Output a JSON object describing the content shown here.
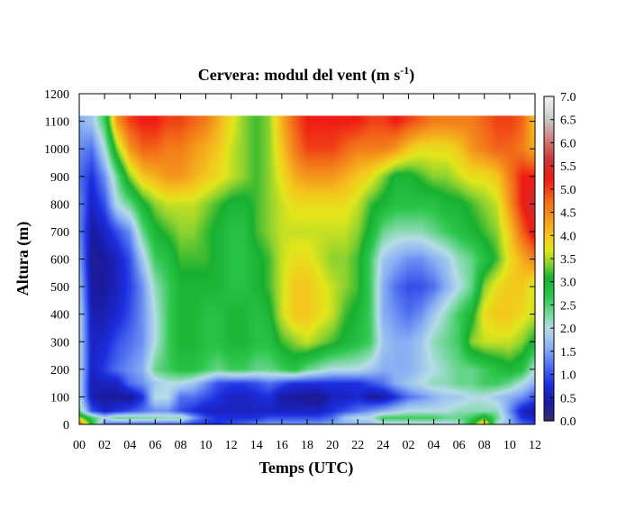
{
  "chart_data": {
    "type": "heatmap",
    "title": {
      "main": "Cervera: modul del vent (m s",
      "superscript": "-1",
      "close": ")"
    },
    "xlabel": "Temps (UTC)",
    "ylabel": "Altura (m)",
    "x_ticks": [
      "00",
      "02",
      "04",
      "06",
      "08",
      "10",
      "12",
      "14",
      "16",
      "18",
      "20",
      "22",
      "24",
      "02",
      "04",
      "06",
      "08",
      "10",
      "12"
    ],
    "xlim_hours": [
      0,
      36
    ],
    "y_ticks": [
      0,
      100,
      200,
      300,
      400,
      500,
      600,
      700,
      800,
      900,
      1000,
      1100,
      1200
    ],
    "ylim": [
      0,
      1200
    ],
    "data_top_m": 1120,
    "colorbar": {
      "label_ticks": [
        "0.0",
        "0.5",
        "1.0",
        "1.5",
        "2.0",
        "2.5",
        "3.0",
        "3.5",
        "4.0",
        "4.5",
        "5.0",
        "5.5",
        "6.0",
        "6.5",
        "7.0"
      ],
      "range": [
        0.0,
        7.0
      ],
      "colormap_stops": [
        {
          "v": 0.0,
          "color": "#30306a"
        },
        {
          "v": 0.4,
          "color": "#1a1aa0"
        },
        {
          "v": 0.8,
          "color": "#1c2ee0"
        },
        {
          "v": 1.2,
          "color": "#4e70f0"
        },
        {
          "v": 1.6,
          "color": "#8ab0f4"
        },
        {
          "v": 2.0,
          "color": "#b6dce8"
        },
        {
          "v": 2.3,
          "color": "#7ad8a0"
        },
        {
          "v": 2.7,
          "color": "#2cc64c"
        },
        {
          "v": 3.1,
          "color": "#18b030"
        },
        {
          "v": 3.4,
          "color": "#8cd230"
        },
        {
          "v": 3.7,
          "color": "#e2e61c"
        },
        {
          "v": 4.0,
          "color": "#f4c81c"
        },
        {
          "v": 4.4,
          "color": "#f4961c"
        },
        {
          "v": 4.8,
          "color": "#f26418"
        },
        {
          "v": 5.2,
          "color": "#ee1c14"
        },
        {
          "v": 5.6,
          "color": "#c83232"
        },
        {
          "v": 6.0,
          "color": "#d26e6e"
        },
        {
          "v": 6.5,
          "color": "#c8c8c8"
        },
        {
          "v": 7.0,
          "color": "#f2f2f2"
        }
      ]
    },
    "grid": false,
    "wind_speed_profiles_m_s": {
      "heights_m": [
        0,
        25,
        50,
        100,
        150,
        200,
        300,
        400,
        500,
        600,
        700,
        800,
        900,
        1000,
        1100
      ],
      "times_h": [
        0,
        1,
        2,
        3,
        4,
        5,
        6,
        7,
        8,
        9,
        10,
        11,
        12,
        13,
        14,
        15,
        16,
        17,
        18,
        19,
        20,
        21,
        22,
        23,
        24,
        25,
        26,
        27,
        28,
        29,
        30,
        31,
        32,
        33,
        34,
        35,
        36
      ],
      "values": [
        [
          5.0,
          3.0,
          1.2,
          1.0,
          1.0,
          1.0,
          1.0,
          1.0,
          1.0,
          0.8,
          0.8,
          0.8,
          1.0,
          1.2,
          1.4,
          1.5,
          1.5,
          1.5,
          1.5,
          1.5,
          1.6,
          1.6,
          1.6,
          1.6,
          1.8,
          1.8,
          1.8,
          1.8,
          1.8,
          1.8,
          2.0,
          3.0,
          4.2,
          2.0,
          1.6,
          1.2,
          1.0
        ],
        [
          3.6,
          2.6,
          2.0,
          2.4,
          2.4,
          2.3,
          2.3,
          2.2,
          2.3,
          1.5,
          1.0,
          0.8,
          0.8,
          0.8,
          0.8,
          1.0,
          1.0,
          1.0,
          1.0,
          1.0,
          1.2,
          1.8,
          2.0,
          2.0,
          2.6,
          2.6,
          2.6,
          2.6,
          2.6,
          2.4,
          2.4,
          2.6,
          3.2,
          2.4,
          1.6,
          0.8,
          0.6
        ],
        [
          2.4,
          1.0,
          0.6,
          0.8,
          1.0,
          1.2,
          1.4,
          1.4,
          1.0,
          0.8,
          0.6,
          0.6,
          0.6,
          0.6,
          0.6,
          0.6,
          0.6,
          0.6,
          0.6,
          0.6,
          0.8,
          1.0,
          1.2,
          1.4,
          1.6,
          1.8,
          2.0,
          2.0,
          2.0,
          2.0,
          2.2,
          2.2,
          2.2,
          2.2,
          1.4,
          0.6,
          0.4
        ],
        [
          2.0,
          0.5,
          0.4,
          0.4,
          0.3,
          0.8,
          2.0,
          2.0,
          1.2,
          1.2,
          1.0,
          0.8,
          0.6,
          0.6,
          0.7,
          0.8,
          0.4,
          0.4,
          0.3,
          0.3,
          0.6,
          0.6,
          0.7,
          0.4,
          0.4,
          0.8,
          1.2,
          1.4,
          1.6,
          1.8,
          1.8,
          2.0,
          2.0,
          1.8,
          1.6,
          1.4,
          1.0
        ],
        [
          2.0,
          0.5,
          0.6,
          0.6,
          1.2,
          1.4,
          1.8,
          2.0,
          2.0,
          1.8,
          1.4,
          1.0,
          0.9,
          0.9,
          1.0,
          1.2,
          1.0,
          0.8,
          0.8,
          0.8,
          0.8,
          0.8,
          0.8,
          1.0,
          1.2,
          1.6,
          1.8,
          2.0,
          2.2,
          2.2,
          2.4,
          2.4,
          2.6,
          2.6,
          2.4,
          2.0,
          1.6
        ],
        [
          2.0,
          0.6,
          0.9,
          1.2,
          1.4,
          1.6,
          2.4,
          2.6,
          2.8,
          2.8,
          2.6,
          2.4,
          2.6,
          2.6,
          2.4,
          2.4,
          2.6,
          2.8,
          2.4,
          2.2,
          2.0,
          2.0,
          2.0,
          1.8,
          1.6,
          1.6,
          1.6,
          1.8,
          2.0,
          2.2,
          2.4,
          2.4,
          2.6,
          2.8,
          3.0,
          2.8,
          2.0
        ],
        [
          2.0,
          0.6,
          0.7,
          1.0,
          1.2,
          1.4,
          2.0,
          2.6,
          3.0,
          3.0,
          2.8,
          2.8,
          3.0,
          3.0,
          2.8,
          2.8,
          3.2,
          3.4,
          3.6,
          3.4,
          3.2,
          3.0,
          2.8,
          2.6,
          1.8,
          1.6,
          1.6,
          1.8,
          2.2,
          2.4,
          2.6,
          3.4,
          3.6,
          3.6,
          3.6,
          3.4,
          3.0
        ],
        [
          2.0,
          0.5,
          0.5,
          0.7,
          1.0,
          1.4,
          2.0,
          2.6,
          3.0,
          3.0,
          2.8,
          2.8,
          3.0,
          3.0,
          2.8,
          3.0,
          3.6,
          4.0,
          4.0,
          3.8,
          3.6,
          3.2,
          3.0,
          2.6,
          1.6,
          1.4,
          1.2,
          1.4,
          1.8,
          2.2,
          2.6,
          3.0,
          3.8,
          4.0,
          4.0,
          3.8,
          3.6
        ],
        [
          1.8,
          0.4,
          0.4,
          0.6,
          0.9,
          1.4,
          2.2,
          2.6,
          3.0,
          3.0,
          3.0,
          3.0,
          2.8,
          2.8,
          3.0,
          3.2,
          3.6,
          4.0,
          4.0,
          3.8,
          3.6,
          3.4,
          3.2,
          2.6,
          1.6,
          1.2,
          1.0,
          1.0,
          1.2,
          1.6,
          2.0,
          2.4,
          3.4,
          3.8,
          4.0,
          4.0,
          3.6
        ],
        [
          1.6,
          0.3,
          0.4,
          0.6,
          1.0,
          1.8,
          2.6,
          2.8,
          3.2,
          3.2,
          3.2,
          3.0,
          2.8,
          2.8,
          3.0,
          3.2,
          3.6,
          3.8,
          3.8,
          3.6,
          3.4,
          3.4,
          3.2,
          2.6,
          1.8,
          1.6,
          1.4,
          1.4,
          1.6,
          1.8,
          2.2,
          2.4,
          2.8,
          3.2,
          3.8,
          4.2,
          4.6
        ],
        [
          1.4,
          0.4,
          0.6,
          1.0,
          1.4,
          2.4,
          3.0,
          3.2,
          3.4,
          3.4,
          3.2,
          3.0,
          2.8,
          2.8,
          3.2,
          3.4,
          3.6,
          3.6,
          3.6,
          3.6,
          3.6,
          3.6,
          3.4,
          3.0,
          2.4,
          2.2,
          2.2,
          2.2,
          2.4,
          2.6,
          2.8,
          3.0,
          3.2,
          3.4,
          4.0,
          4.8,
          5.4
        ],
        [
          1.4,
          0.6,
          1.0,
          2.0,
          2.4,
          3.0,
          3.4,
          3.6,
          3.6,
          3.6,
          3.4,
          3.2,
          3.0,
          3.0,
          3.2,
          3.4,
          3.6,
          3.8,
          3.8,
          3.8,
          3.8,
          3.8,
          3.6,
          3.2,
          3.0,
          2.8,
          2.8,
          2.8,
          2.8,
          3.0,
          3.0,
          3.2,
          3.4,
          3.6,
          4.4,
          5.2,
          5.6
        ],
        [
          1.2,
          0.8,
          1.4,
          2.4,
          3.4,
          4.0,
          4.2,
          4.4,
          4.4,
          4.2,
          4.0,
          3.8,
          3.6,
          3.4,
          3.2,
          3.4,
          3.8,
          4.2,
          4.4,
          4.4,
          4.4,
          4.2,
          4.0,
          3.8,
          3.4,
          3.0,
          3.0,
          3.2,
          3.4,
          3.4,
          3.6,
          3.8,
          3.8,
          4.0,
          4.6,
          5.2,
          5.2
        ],
        [
          1.4,
          1.2,
          2.0,
          3.4,
          4.4,
          4.8,
          4.8,
          4.6,
          4.6,
          4.4,
          4.2,
          4.0,
          3.6,
          3.4,
          3.2,
          3.4,
          4.0,
          4.6,
          5.0,
          5.0,
          5.0,
          4.8,
          4.6,
          4.6,
          4.6,
          4.4,
          4.0,
          3.8,
          3.8,
          3.8,
          4.0,
          4.4,
          4.6,
          4.8,
          4.8,
          4.6,
          4.2
        ],
        [
          1.6,
          1.8,
          2.6,
          4.4,
          5.0,
          5.2,
          5.2,
          5.0,
          5.0,
          4.8,
          4.6,
          4.2,
          3.8,
          3.4,
          3.2,
          3.4,
          4.2,
          4.8,
          5.2,
          5.2,
          5.2,
          5.2,
          5.2,
          5.0,
          5.0,
          5.2,
          5.0,
          4.8,
          4.6,
          4.6,
          4.6,
          4.6,
          4.8,
          5.0,
          5.0,
          4.8,
          4.0
        ]
      ]
    }
  }
}
